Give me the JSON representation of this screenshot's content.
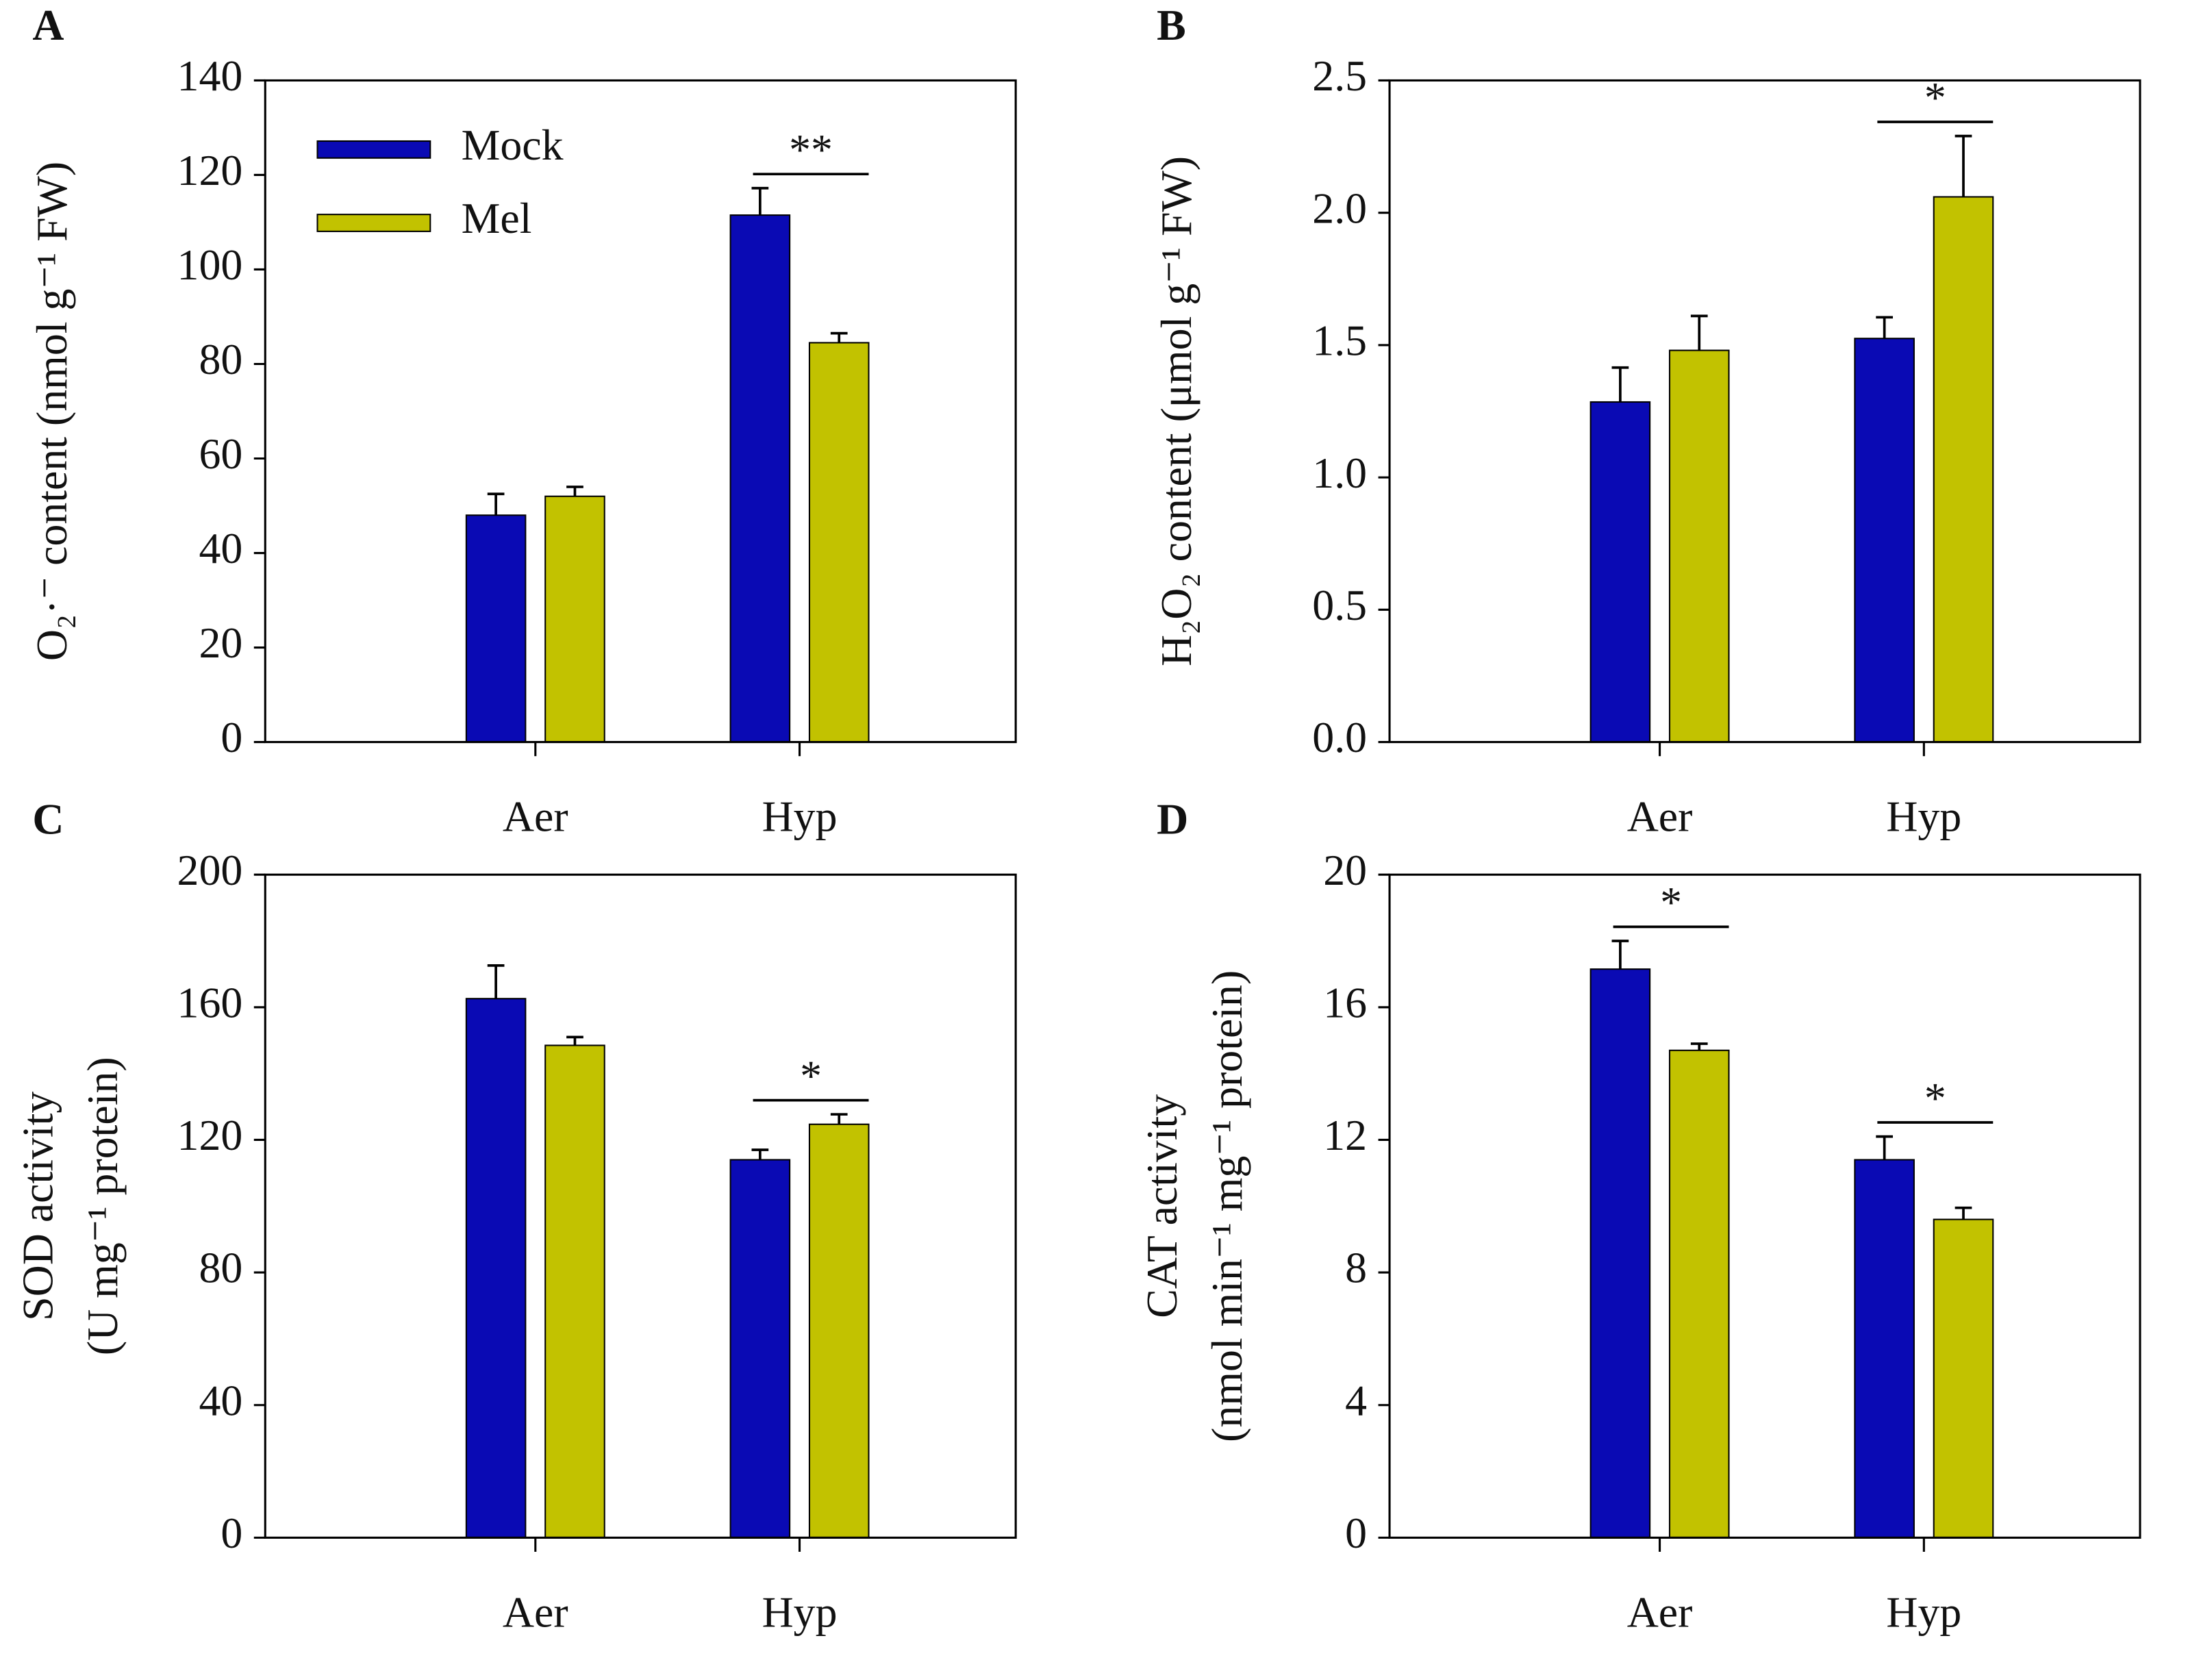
{
  "chart_data": [
    {
      "type": "bar",
      "panel_label": "A",
      "ylabel": [
        "O₂·⁻ content (nmol g⁻¹ FW)"
      ],
      "categories": [
        "Aer",
        "Hyp"
      ],
      "series": [
        {
          "name": "Mock",
          "color": "#0a0ab4",
          "values": [
            48,
            111.5
          ],
          "errors": [
            4.5,
            5.7
          ]
        },
        {
          "name": "Mel",
          "color": "#c2c200",
          "values": [
            52,
            84.5
          ],
          "errors": [
            2,
            2
          ]
        }
      ],
      "significance": [
        null,
        "**"
      ],
      "legend": true,
      "ylim": [
        0,
        140
      ],
      "yticks": [
        0,
        20,
        40,
        60,
        80,
        100,
        120,
        140
      ]
    },
    {
      "type": "bar",
      "panel_label": "B",
      "ylabel": [
        "H₂O₂ content (μmol g⁻¹ FW)"
      ],
      "categories": [
        "Aer",
        "Hyp"
      ],
      "series": [
        {
          "color": "#0a0ab4",
          "values": [
            1.285,
            1.525
          ],
          "errors": [
            0.13,
            0.08
          ]
        },
        {
          "color": "#c2c200",
          "values": [
            1.48,
            2.06
          ],
          "errors": [
            0.13,
            0.23
          ]
        }
      ],
      "significance": [
        null,
        "*"
      ],
      "ylim": [
        0,
        2.5
      ],
      "yticks": [
        {
          "value": 0,
          "label": "0.0"
        },
        0.5,
        {
          "value": 1,
          "label": "1.0"
        },
        1.5,
        {
          "value": 2,
          "label": "2.0"
        },
        2.5
      ]
    },
    {
      "type": "bar",
      "panel_label": "C",
      "ylabel": [
        "SOD activity",
        "(U mg⁻¹ protein)"
      ],
      "categories": [
        "Aer",
        "Hyp"
      ],
      "series": [
        {
          "color": "#0a0ab4",
          "values": [
            162.6,
            114
          ],
          "errors": [
            10,
            3
          ]
        },
        {
          "color": "#c2c200",
          "values": [
            148.5,
            124.7
          ],
          "errors": [
            2.5,
            3
          ]
        }
      ],
      "significance": [
        null,
        "*"
      ],
      "ylim": [
        0,
        200
      ],
      "yticks": [
        0,
        40,
        80,
        120,
        160,
        200
      ]
    },
    {
      "type": "bar",
      "panel_label": "D",
      "ylabel": [
        "CAT activity",
        "(nmol min⁻¹ mg⁻¹ protein)"
      ],
      "categories": [
        "Aer",
        "Hyp"
      ],
      "series": [
        {
          "color": "#0a0ab4",
          "values": [
            17.15,
            11.4
          ],
          "errors": [
            0.85,
            0.7
          ]
        },
        {
          "color": "#c2c200",
          "values": [
            14.7,
            9.6
          ],
          "errors": [
            0.2,
            0.35
          ]
        }
      ],
      "significance": [
        "*",
        "*"
      ],
      "ylim": [
        0,
        20
      ],
      "yticks": [
        0,
        4,
        8,
        12,
        16,
        20
      ]
    }
  ]
}
